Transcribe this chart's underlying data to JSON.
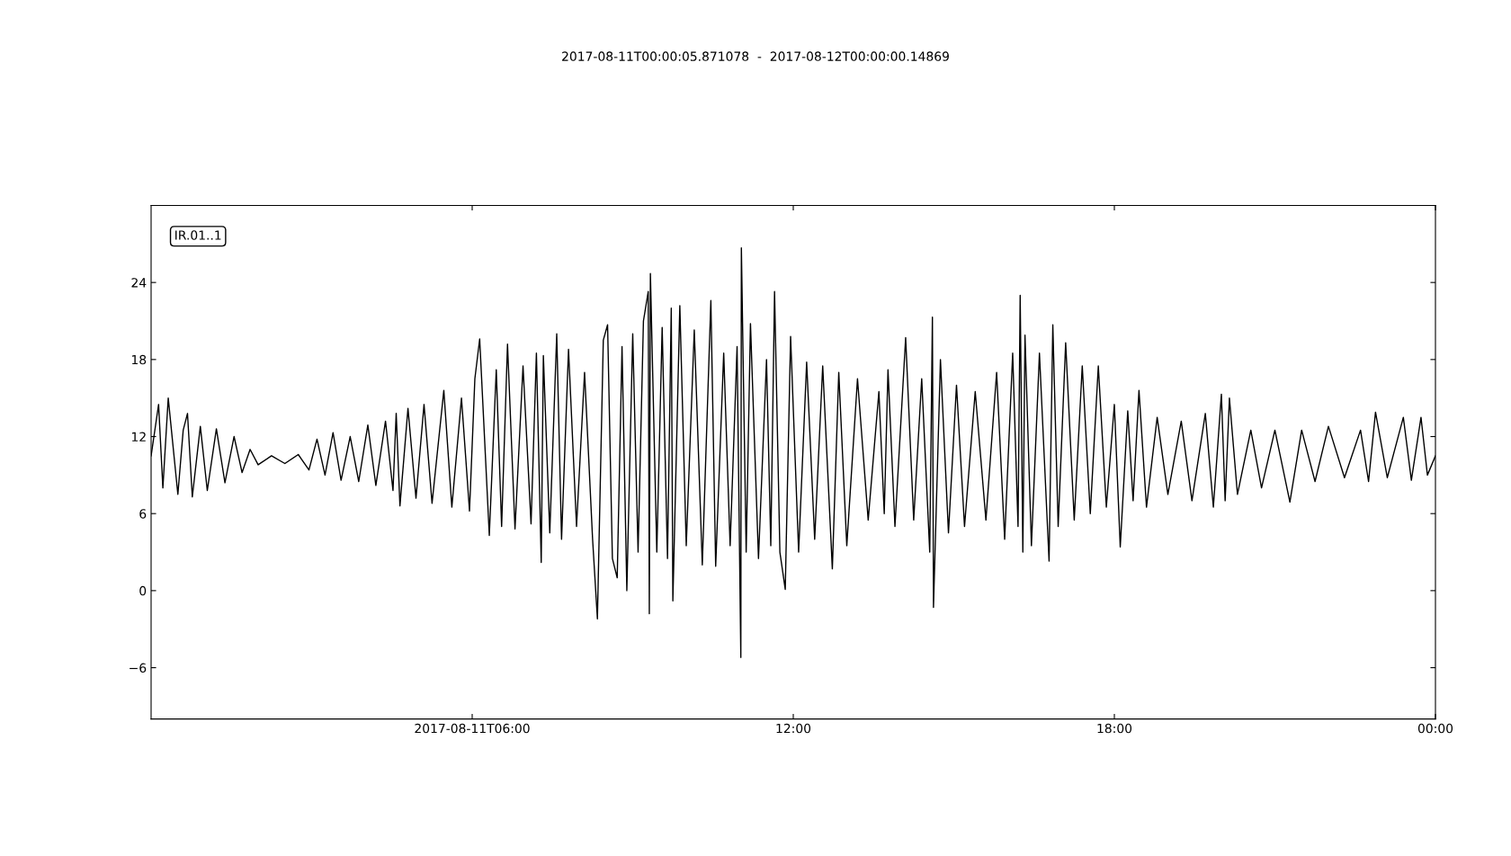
{
  "chart_data": {
    "type": "line",
    "title": "2017-08-11T00:00:05.871078  -  2017-08-12T00:00:00.14869",
    "annotations": [
      "IR.01..1"
    ],
    "xlim": [
      0,
      24
    ],
    "xticks": [
      {
        "value": 6,
        "label": "2017-08-11T06:00"
      },
      {
        "value": 12,
        "label": "12:00"
      },
      {
        "value": 18,
        "label": "18:00"
      },
      {
        "value": 24,
        "label": "00:00"
      }
    ],
    "ylim": [
      -10,
      30
    ],
    "yticks": [
      {
        "value": -6,
        "label": "−6"
      },
      0,
      6,
      12,
      18,
      24
    ],
    "grid": false,
    "legend": false,
    "marker": "none",
    "line_style": "solid",
    "series": [
      {
        "color": "#000000",
        "x": [
          0.0,
          0.14,
          0.22,
          0.32,
          0.5,
          0.6,
          0.68,
          0.77,
          0.92,
          1.05,
          1.22,
          1.38,
          1.55,
          1.7,
          1.85,
          2.0,
          2.25,
          2.5,
          2.75,
          2.95,
          3.1,
          3.25,
          3.4,
          3.55,
          3.72,
          3.88,
          4.05,
          4.2,
          4.38,
          4.52,
          4.58,
          4.65,
          4.8,
          4.95,
          5.1,
          5.25,
          5.47,
          5.62,
          5.8,
          5.95,
          6.05,
          6.14,
          6.32,
          6.45,
          6.55,
          6.66,
          6.8,
          6.95,
          7.1,
          7.2,
          7.29,
          7.33,
          7.45,
          7.58,
          7.67,
          7.8,
          7.95,
          8.1,
          8.25,
          8.34,
          8.45,
          8.53,
          8.62,
          8.71,
          8.8,
          8.89,
          9.0,
          9.1,
          9.2,
          9.29,
          9.31,
          9.33,
          9.45,
          9.55,
          9.65,
          9.72,
          9.75,
          9.88,
          10.0,
          10.15,
          10.3,
          10.46,
          10.55,
          10.7,
          10.82,
          10.95,
          11.02,
          11.03,
          11.12,
          11.2,
          11.35,
          11.5,
          11.58,
          11.65,
          11.75,
          11.85,
          11.95,
          12.1,
          12.25,
          12.4,
          12.55,
          12.73,
          12.85,
          13.0,
          13.2,
          13.4,
          13.6,
          13.7,
          13.77,
          13.9,
          14.1,
          14.25,
          14.4,
          14.55,
          14.6,
          14.62,
          14.75,
          14.9,
          15.05,
          15.2,
          15.4,
          15.6,
          15.8,
          15.95,
          16.1,
          16.2,
          16.24,
          16.29,
          16.33,
          16.45,
          16.6,
          16.78,
          16.85,
          16.95,
          17.09,
          17.25,
          17.4,
          17.55,
          17.7,
          17.85,
          18.0,
          18.11,
          18.25,
          18.35,
          18.46,
          18.6,
          18.8,
          19.0,
          19.25,
          19.45,
          19.7,
          19.85,
          20.0,
          20.07,
          20.15,
          20.3,
          20.55,
          20.75,
          21.0,
          21.28,
          21.5,
          21.75,
          22.0,
          22.3,
          22.6,
          22.75,
          22.88,
          23.1,
          23.4,
          23.55,
          23.73,
          23.85,
          24.0
        ],
        "values": [
          10.5,
          14.5,
          8.0,
          15.0,
          7.5,
          12.5,
          13.8,
          7.3,
          12.8,
          7.8,
          12.6,
          8.4,
          12.0,
          9.2,
          11.0,
          9.8,
          10.5,
          9.9,
          10.6,
          9.4,
          11.8,
          9.0,
          12.3,
          8.6,
          12.0,
          8.5,
          12.9,
          8.2,
          13.2,
          7.8,
          13.8,
          6.6,
          14.2,
          7.2,
          14.5,
          6.8,
          15.6,
          6.5,
          15.0,
          6.2,
          16.5,
          19.6,
          4.3,
          17.2,
          5.0,
          19.2,
          4.8,
          17.5,
          5.2,
          18.5,
          2.2,
          18.3,
          4.5,
          20.0,
          4.0,
          18.8,
          5.0,
          17.0,
          4.0,
          -2.2,
          19.5,
          20.7,
          2.5,
          1.0,
          19.0,
          0.0,
          20.0,
          3.0,
          21.0,
          23.3,
          -1.8,
          24.7,
          3.0,
          20.5,
          2.5,
          22.0,
          -0.8,
          22.2,
          3.5,
          20.3,
          2.0,
          22.6,
          1.9,
          18.5,
          3.5,
          19.0,
          -5.2,
          26.7,
          3.0,
          20.8,
          2.5,
          18.0,
          3.5,
          23.3,
          3.0,
          0.1,
          19.8,
          3.0,
          17.8,
          4.0,
          17.5,
          1.7,
          17.0,
          3.5,
          16.5,
          5.5,
          15.5,
          6.0,
          17.2,
          5.0,
          19.7,
          5.5,
          16.5,
          3.0,
          21.3,
          -1.3,
          18.0,
          4.5,
          16.0,
          5.0,
          15.5,
          5.5,
          17.0,
          4.0,
          18.5,
          5.0,
          23.0,
          3.0,
          19.9,
          3.5,
          18.5,
          2.3,
          20.7,
          5.0,
          19.3,
          5.5,
          17.5,
          6.0,
          17.5,
          6.5,
          14.5,
          3.4,
          14.0,
          7.0,
          15.6,
          6.5,
          13.5,
          7.5,
          13.2,
          7.0,
          13.8,
          6.5,
          15.3,
          7.0,
          15.0,
          7.5,
          12.5,
          8.0,
          12.5,
          6.9,
          12.5,
          8.5,
          12.8,
          8.8,
          12.5,
          8.5,
          13.9,
          8.8,
          13.5,
          8.6,
          13.5,
          9.0,
          10.5
        ]
      }
    ]
  }
}
